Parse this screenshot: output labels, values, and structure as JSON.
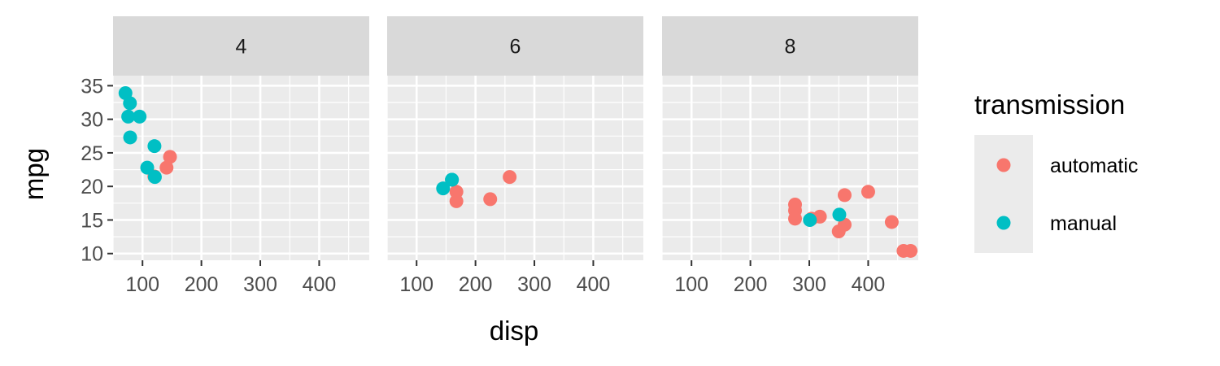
{
  "chart_data": {
    "type": "scatter",
    "xlabel": "disp",
    "ylabel": "mpg",
    "xlim": [
      50,
      485
    ],
    "ylim": [
      9,
      36.5
    ],
    "x_ticks": [
      100,
      200,
      300,
      400
    ],
    "y_ticks": [
      10,
      15,
      20,
      25,
      30,
      35
    ],
    "grid": true,
    "facet_variable_values": [
      "4",
      "6",
      "8"
    ],
    "legend": {
      "title": "transmission",
      "position": "right",
      "items": [
        {
          "label": "automatic",
          "color": "#F8766D"
        },
        {
          "label": "manual",
          "color": "#00BFC4"
        }
      ]
    },
    "panels": [
      {
        "strip": "4",
        "series": [
          {
            "name": "automatic",
            "color": "#F8766D",
            "points": [
              [
                146.7,
                24.4
              ],
              [
                140.8,
                22.8
              ],
              [
                120.1,
                21.5
              ]
            ]
          },
          {
            "name": "manual",
            "color": "#00BFC4",
            "points": [
              [
                108,
                22.8
              ],
              [
                78.7,
                32.4
              ],
              [
                75.7,
                30.4
              ],
              [
                71.1,
                33.9
              ],
              [
                79,
                27.3
              ],
              [
                120.3,
                26.0
              ],
              [
                95.1,
                30.4
              ],
              [
                121,
                21.4
              ]
            ]
          }
        ]
      },
      {
        "strip": "6",
        "series": [
          {
            "name": "automatic",
            "color": "#F8766D",
            "points": [
              [
                258,
                21.4
              ],
              [
                225,
                18.1
              ],
              [
                167.6,
                19.2
              ],
              [
                167.6,
                17.8
              ]
            ]
          },
          {
            "name": "manual",
            "color": "#00BFC4",
            "points": [
              [
                160,
                21.0
              ],
              [
                160,
                21.0
              ],
              [
                145,
                19.7
              ]
            ]
          }
        ]
      },
      {
        "strip": "8",
        "series": [
          {
            "name": "automatic",
            "color": "#F8766D",
            "points": [
              [
                360,
                18.7
              ],
              [
                360,
                14.3
              ],
              [
                275.8,
                16.4
              ],
              [
                275.8,
                17.3
              ],
              [
                275.8,
                15.2
              ],
              [
                472,
                10.4
              ],
              [
                460,
                10.4
              ],
              [
                440,
                14.7
              ],
              [
                318,
                15.5
              ],
              [
                304,
                15.2
              ],
              [
                350,
                13.3
              ],
              [
                400,
                19.2
              ]
            ]
          },
          {
            "name": "manual",
            "color": "#00BFC4",
            "points": [
              [
                351,
                15.8
              ],
              [
                301,
                15.0
              ]
            ]
          }
        ]
      }
    ]
  }
}
